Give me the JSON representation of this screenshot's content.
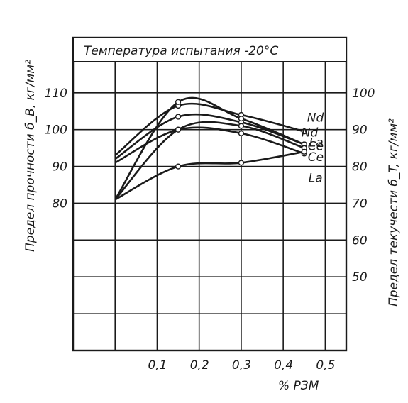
{
  "chart_data": {
    "type": "line",
    "title": "Температура испытания -20°С",
    "xlabel": "% РЗМ",
    "ylabel_left": "Предел прочности б_B, кг/мм²",
    "ylabel_right": "Предел текучести б_T, кг/мм²",
    "xlim": [
      -0.1,
      0.55
    ],
    "x_ticks": [
      0.1,
      0.2,
      0.3,
      0.4,
      0.5
    ],
    "x_tick_labels": [
      "0,1",
      "0,2",
      "0,3",
      "0,4",
      "0,5"
    ],
    "ylim_left": [
      40,
      125
    ],
    "y_ticks_left": [
      80,
      90,
      100,
      110
    ],
    "ylim_right": [
      30,
      115
    ],
    "y_ticks_right": [
      50,
      60,
      70,
      80,
      90,
      100
    ],
    "grid": true,
    "tensile_strength": [
      {
        "name": "Nd",
        "label": "Nd",
        "x": [
          0.0,
          0.15,
          0.3,
          0.45
        ],
        "y": [
          93,
          106.5,
          104,
          99.5
        ]
      },
      {
        "name": "Ce",
        "label": "Ce",
        "x": [
          0.0,
          0.15,
          0.3,
          0.45
        ],
        "y": [
          92,
          103.5,
          102,
          96
        ]
      },
      {
        "name": "La",
        "label": "La",
        "x": [
          0.0,
          0.15,
          0.3,
          0.45
        ],
        "y": [
          91,
          100,
          99,
          93.5
        ]
      }
    ],
    "yield_strength": [
      {
        "name": "Nd",
        "label": "Nd",
        "x": [
          0.0,
          0.15,
          0.3,
          0.45
        ],
        "y": [
          71,
          97.5,
          93,
          86
        ]
      },
      {
        "name": "La",
        "label": "La",
        "x": [
          0.0,
          0.15,
          0.3,
          0.45
        ],
        "y": [
          71,
          90,
          91,
          85
        ]
      },
      {
        "name": "Ce",
        "label": "Ce",
        "x": [
          0.0,
          0.15,
          0.3,
          0.45
        ],
        "y": [
          71,
          80,
          81,
          84
        ]
      }
    ]
  }
}
